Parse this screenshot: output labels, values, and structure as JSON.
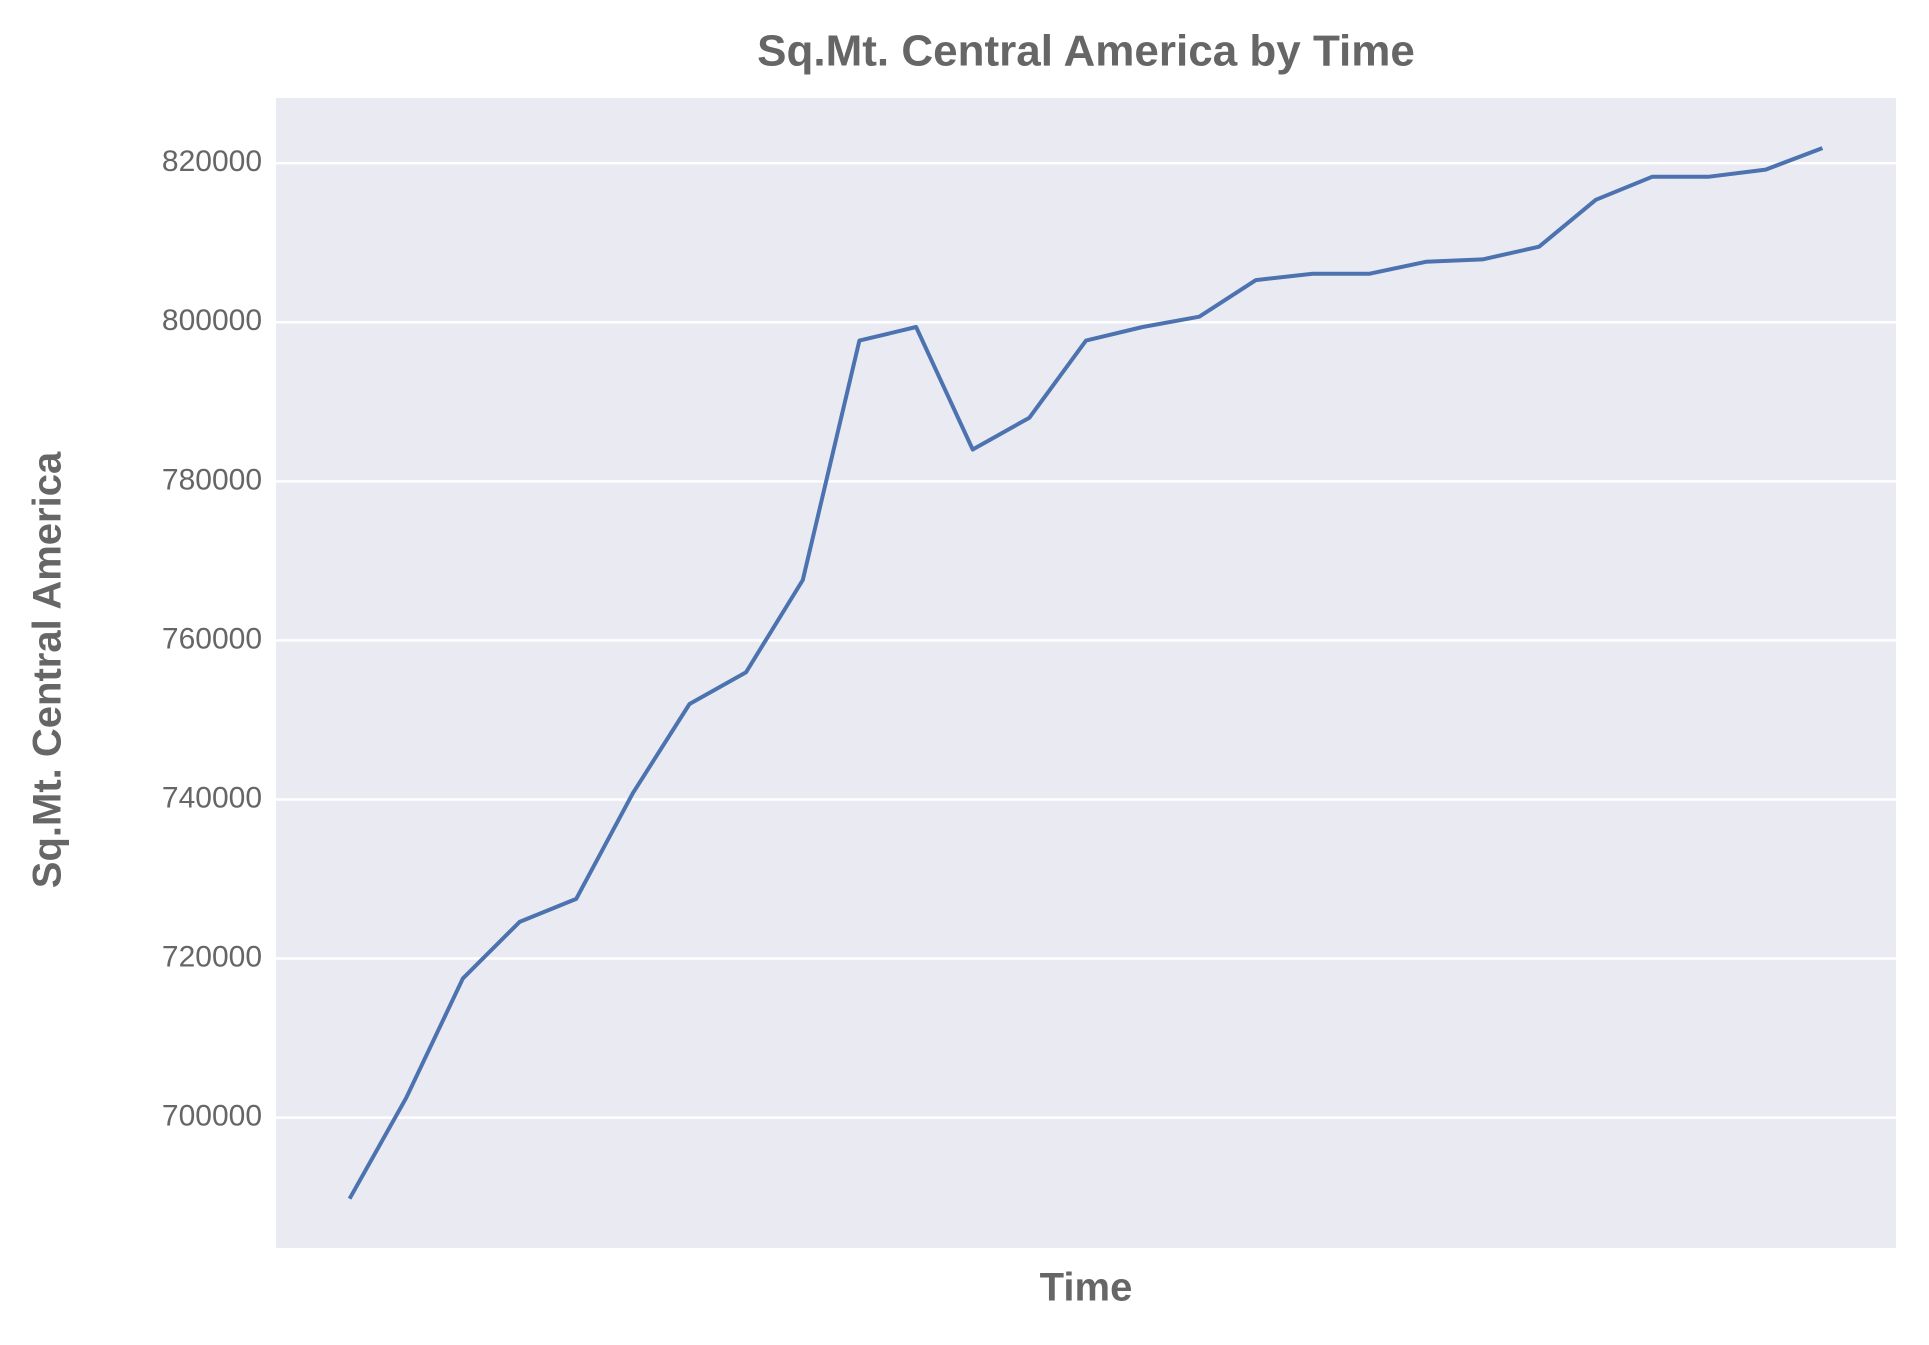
{
  "chart_data": {
    "type": "line",
    "title": "Sq.Mt. Central America by Time",
    "x_label": "Time",
    "y_label": "Sq.Mt. Central America",
    "categories": [
      null,
      null,
      null,
      null,
      null,
      null,
      null,
      null,
      null,
      null,
      null,
      null,
      null,
      null,
      null,
      null,
      null,
      null,
      null,
      null,
      null,
      null,
      null,
      null,
      null,
      null,
      null
    ],
    "series": [
      {
        "name": "Sq.Mt. Central America",
        "color": "#4c72b0",
        "values": [
          689800,
          702500,
          717500,
          724600,
          727500,
          740800,
          752000,
          756000,
          767600,
          797700,
          799400,
          784000,
          788000,
          797700,
          799400,
          800700,
          805300,
          806100,
          806100,
          807600,
          807900,
          809500,
          815400,
          818300,
          818300,
          819200,
          821900
        ]
      }
    ],
    "ylim": [
      683600,
      828200
    ],
    "yticks": [
      700000,
      720000,
      740000,
      760000,
      780000,
      800000,
      820000
    ],
    "grid": true,
    "background": "#eaeaf2"
  }
}
